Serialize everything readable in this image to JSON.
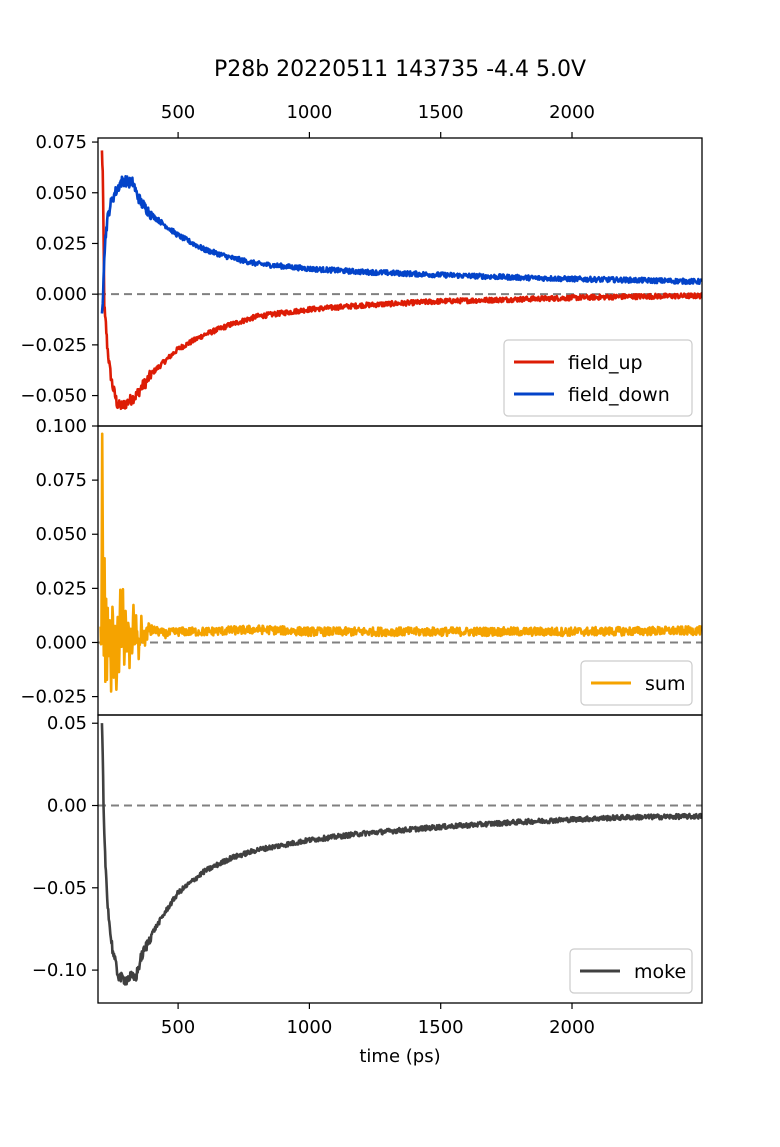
{
  "figure": {
    "title": "P28b  20220511  143735  -4.4  5.0V",
    "xlabel": "time (ps)",
    "xlim": [
      195,
      2495
    ],
    "xticks": [
      500,
      1000,
      1500,
      2000
    ],
    "top_xticks": [
      500,
      1000,
      1500,
      2000
    ],
    "colors": {
      "field_up": "#dd1c05",
      "field_down": "#0343c9",
      "sum": "#f5a300",
      "moke": "#404040",
      "zero_line": "#808080"
    }
  },
  "chart_data": [
    {
      "type": "line",
      "panel": "top",
      "ylim": [
        -0.065,
        0.077
      ],
      "yticks": [
        -0.05,
        -0.025,
        0.0,
        0.025,
        0.05,
        0.075
      ],
      "yticklabels": [
        "−0.050",
        "−0.025",
        "0.000",
        "0.025",
        "0.050",
        "0.075"
      ],
      "legend_position": "lower right",
      "zero_line": true,
      "series": [
        {
          "name": "field_up",
          "color": "#dd1c05",
          "x": [
            210,
            213,
            216,
            219,
            222,
            225,
            230,
            240,
            250,
            260,
            270,
            280,
            290,
            300,
            310,
            320,
            330,
            340,
            360,
            380,
            400,
            450,
            500,
            600,
            700,
            800,
            1000,
            1200,
            1500,
            1800,
            2000,
            2200,
            2495
          ],
          "y": [
            0.07,
            0.06,
            0.03,
            -0.005,
            -0.012,
            -0.015,
            -0.025,
            -0.037,
            -0.045,
            -0.05,
            -0.055,
            -0.055,
            -0.055,
            -0.054,
            -0.053,
            -0.052,
            -0.051,
            -0.05,
            -0.046,
            -0.043,
            -0.039,
            -0.033,
            -0.027,
            -0.02,
            -0.015,
            -0.011,
            -0.0075,
            -0.0055,
            -0.0035,
            -0.0025,
            -0.0018,
            -0.0012,
            -0.0008
          ]
        },
        {
          "name": "field_down",
          "color": "#0343c9",
          "x": [
            210,
            213,
            216,
            219,
            222,
            225,
            230,
            240,
            250,
            260,
            270,
            280,
            290,
            300,
            310,
            320,
            330,
            340,
            360,
            380,
            400,
            450,
            500,
            600,
            700,
            800,
            1000,
            1200,
            1500,
            1800,
            2000,
            2200,
            2495
          ],
          "y": [
            -0.012,
            -0.005,
            0.01,
            0.02,
            0.025,
            0.03,
            0.036,
            0.043,
            0.047,
            0.05,
            0.052,
            0.055,
            0.056,
            0.056,
            0.055,
            0.055,
            0.055,
            0.05,
            0.045,
            0.042,
            0.039,
            0.034,
            0.029,
            0.022,
            0.018,
            0.015,
            0.0125,
            0.011,
            0.0095,
            0.0082,
            0.0075,
            0.007,
            0.0062
          ]
        }
      ]
    },
    {
      "type": "line",
      "panel": "middle",
      "ylim": [
        -0.0335,
        0.1
      ],
      "yticks": [
        -0.025,
        0.0,
        0.025,
        0.05,
        0.075,
        0.1
      ],
      "yticklabels": [
        "−0.025",
        "0.000",
        "0.025",
        "0.050",
        "0.075",
        "0.100"
      ],
      "legend_position": "lower right",
      "zero_line": true,
      "series": [
        {
          "name": "sum",
          "color": "#f5a300",
          "x": [
            205,
            208,
            211,
            214,
            217,
            220,
            223,
            226,
            229,
            232,
            235,
            240,
            245,
            250,
            255,
            260,
            265,
            270,
            275,
            280,
            285,
            290,
            295,
            300,
            305,
            310,
            315,
            320,
            325,
            330,
            335,
            340,
            350,
            360,
            370,
            380,
            400,
            450,
            500,
            600,
            800,
            1000,
            1500,
            2000,
            2495
          ],
          "y": [
            0.005,
            0.0,
            0.093,
            0.03,
            -0.01,
            0.04,
            -0.02,
            0.02,
            -0.015,
            0.015,
            -0.01,
            0.01,
            -0.022,
            0.02,
            -0.015,
            0.012,
            -0.025,
            0.015,
            -0.01,
            0.02,
            -0.005,
            0.022,
            -0.012,
            0.018,
            -0.008,
            0.012,
            -0.012,
            0.01,
            -0.005,
            0.015,
            -0.003,
            0.009,
            -0.005,
            0.008,
            0.0,
            0.005,
            0.006,
            0.004,
            0.005,
            0.005,
            0.006,
            0.005,
            0.005,
            0.005,
            0.0055
          ]
        }
      ]
    },
    {
      "type": "line",
      "panel": "bottom",
      "ylim": [
        -0.12,
        0.055
      ],
      "yticks": [
        -0.1,
        -0.05,
        0.0,
        0.05
      ],
      "yticklabels": [
        "−0.10",
        "−0.05",
        "0.00",
        "0.05"
      ],
      "legend_position": "lower right",
      "zero_line": true,
      "series": [
        {
          "name": "moke",
          "color": "#404040",
          "x": [
            210,
            213,
            216,
            219,
            222,
            225,
            230,
            240,
            250,
            260,
            270,
            280,
            290,
            300,
            310,
            320,
            330,
            340,
            360,
            380,
            400,
            450,
            500,
            600,
            700,
            800,
            1000,
            1200,
            1500,
            1800,
            2000,
            2200,
            2495
          ],
          "y": [
            0.048,
            0.03,
            0.0,
            -0.02,
            -0.03,
            -0.04,
            -0.055,
            -0.075,
            -0.087,
            -0.095,
            -0.102,
            -0.105,
            -0.105,
            -0.106,
            -0.105,
            -0.104,
            -0.105,
            -0.104,
            -0.092,
            -0.085,
            -0.078,
            -0.065,
            -0.053,
            -0.04,
            -0.032,
            -0.027,
            -0.021,
            -0.017,
            -0.013,
            -0.01,
            -0.0085,
            -0.0072,
            -0.0065
          ]
        }
      ]
    }
  ]
}
